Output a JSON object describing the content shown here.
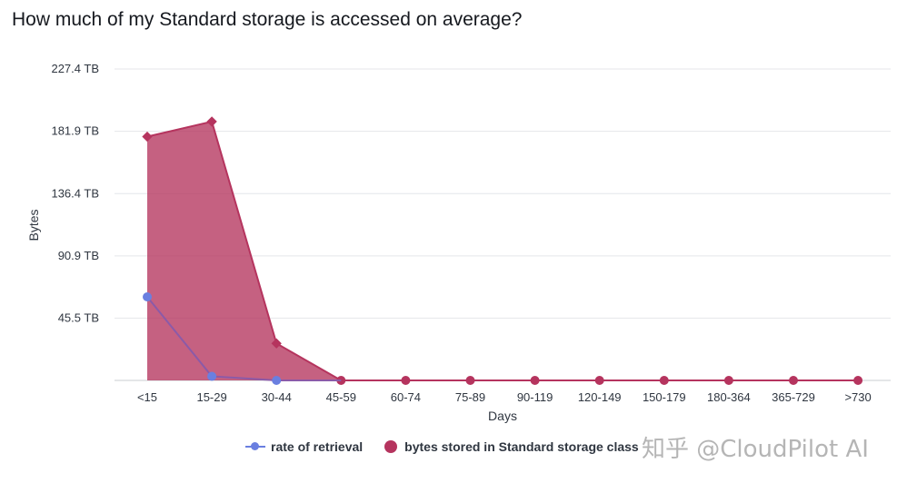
{
  "chart_data": {
    "type": "area",
    "title": "How much of my Standard storage is accessed on average?",
    "xlabel": "Days",
    "ylabel": "Bytes",
    "categories": [
      "<15",
      "15-29",
      "30-44",
      "45-59",
      "60-74",
      "75-89",
      "90-119",
      "120-149",
      "150-179",
      "180-364",
      "365-729",
      ">730"
    ],
    "y_ticks": [
      {
        "value": 45.5,
        "label": "45.5 TB"
      },
      {
        "value": 90.9,
        "label": "90.9 TB"
      },
      {
        "value": 136.4,
        "label": "136.4 TB"
      },
      {
        "value": 181.9,
        "label": "181.9 TB"
      },
      {
        "value": 227.4,
        "label": "227.4 TB"
      }
    ],
    "ylim": [
      0,
      227.4
    ],
    "grid": true,
    "series": [
      {
        "name": "bytes stored in Standard storage class",
        "type": "area",
        "color": "#b5345e",
        "values": [
          178,
          189,
          27,
          0,
          0,
          0,
          0,
          0,
          0,
          0,
          0,
          0
        ]
      },
      {
        "name": "rate of retrieval",
        "type": "line",
        "color": "#6a7fe0",
        "values": [
          61,
          3,
          0,
          0,
          null,
          null,
          null,
          null,
          null,
          null,
          null,
          null
        ]
      }
    ],
    "legend": [
      "rate of retrieval",
      "bytes stored in Standard storage class"
    ],
    "legend_position": "bottom"
  },
  "watermark": "知乎 @CloudPilot AI"
}
